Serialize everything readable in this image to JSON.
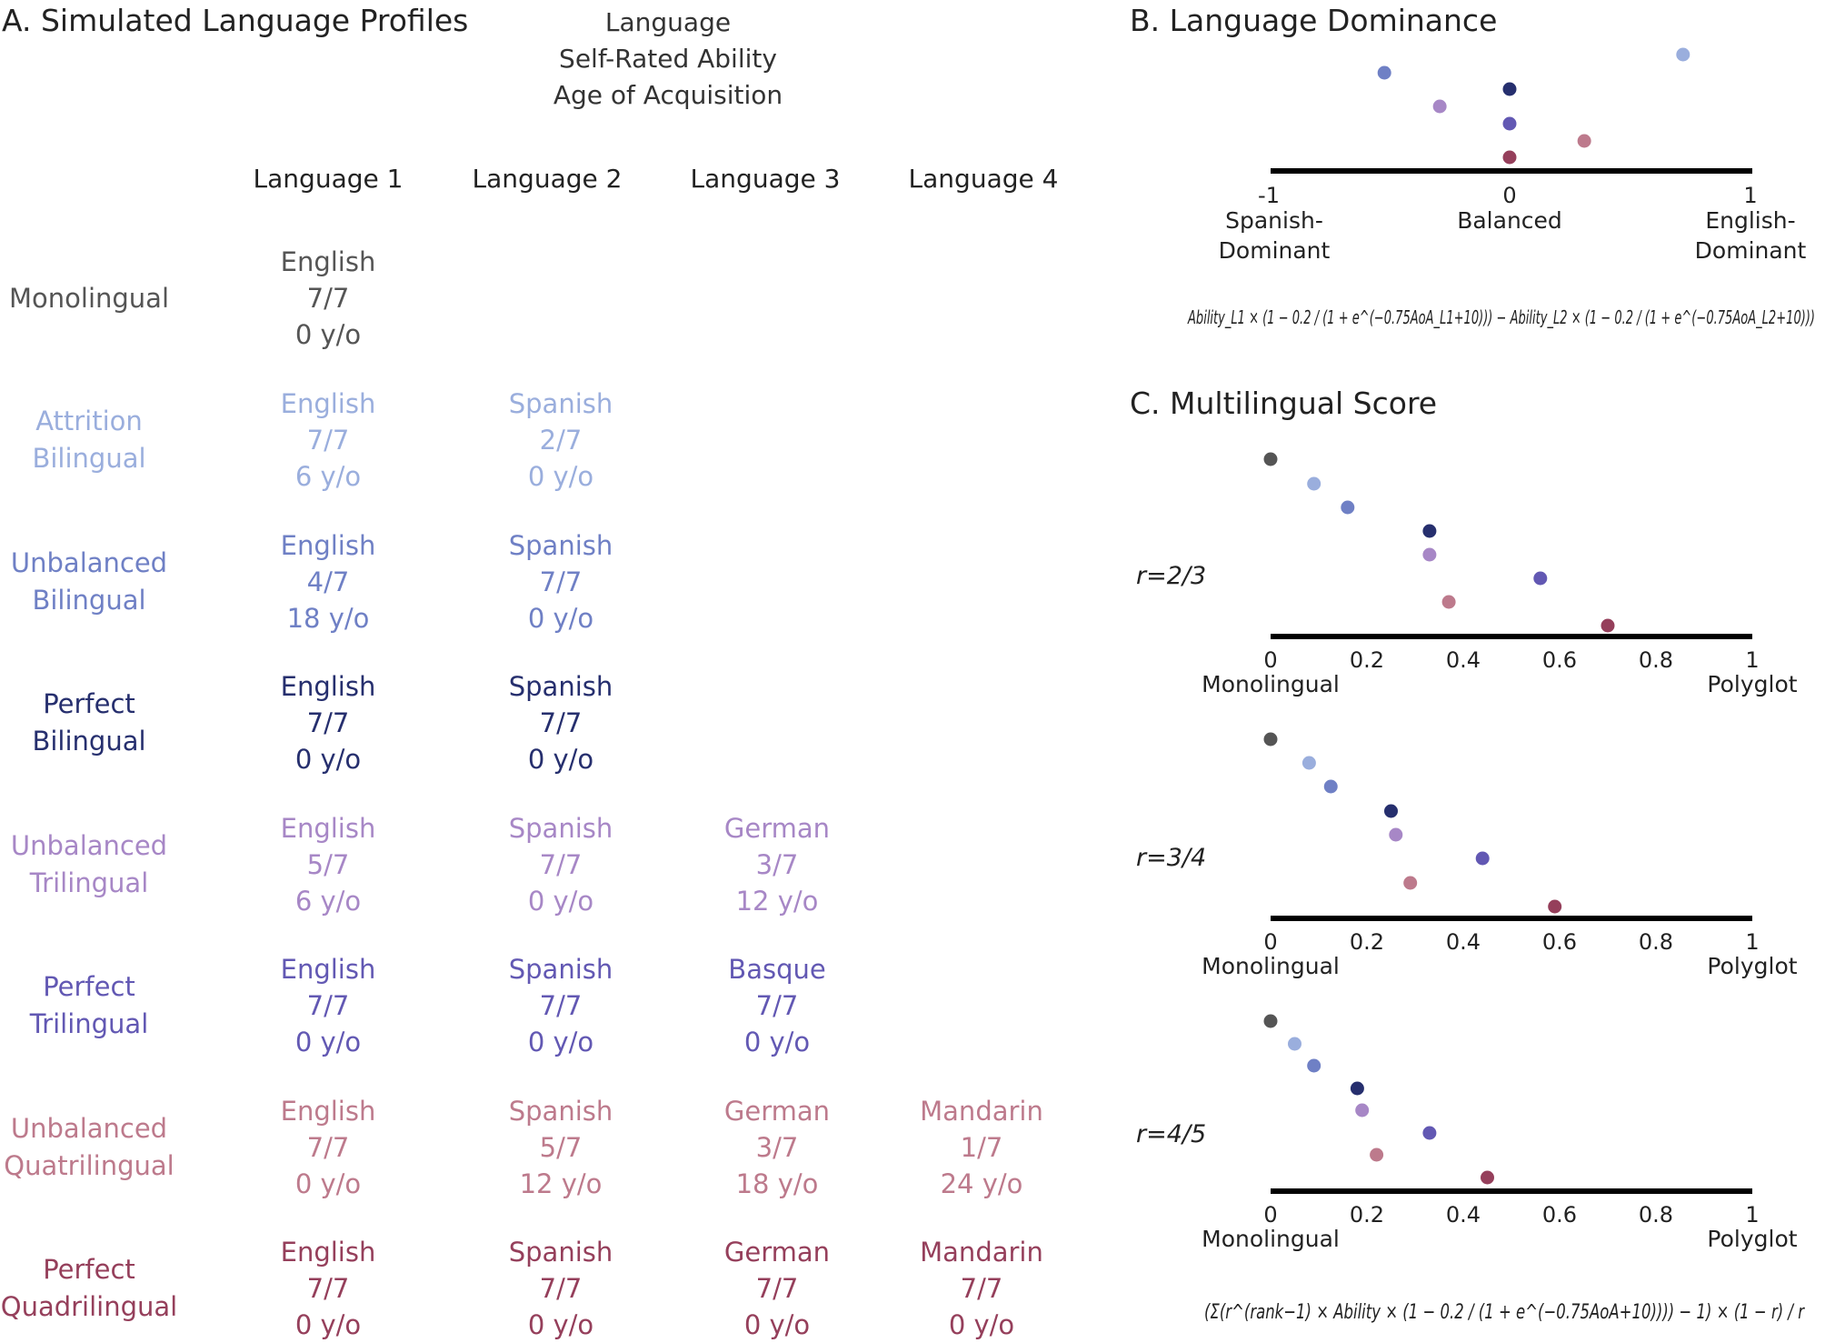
{
  "colors": {
    "Monolingual": "#555555",
    "Attrition Bilingual": "#9aaedd",
    "Unbalanced Bilingual": "#6f80c5",
    "Perfect Bilingual": "#262f6e",
    "Unbalanced Trilingual": "#a787c6",
    "Perfect Trilingual": "#6258b3",
    "Unbalanced Quatrilingual": "#bd7a8c",
    "Perfect Quadrilingual": "#953f5b"
  },
  "panel_a": {
    "title": "A.  Simulated Language Profiles",
    "key": [
      "Language",
      "Self-Rated Ability",
      "Age of Acquisition"
    ],
    "columns": [
      "Language 1",
      "Language 2",
      "Language 3",
      "Language 4"
    ],
    "profiles": [
      {
        "label": [
          "Monolingual"
        ],
        "langs": [
          [
            "English",
            "7/7",
            "0 y/o"
          ]
        ]
      },
      {
        "label": [
          "Attrition",
          "Bilingual"
        ],
        "langs": [
          [
            "English",
            "7/7",
            "6 y/o"
          ],
          [
            "Spanish",
            "2/7",
            "0 y/o"
          ]
        ]
      },
      {
        "label": [
          "Unbalanced",
          "Bilingual"
        ],
        "langs": [
          [
            "English",
            "4/7",
            "18 y/o"
          ],
          [
            "Spanish",
            "7/7",
            "0 y/o"
          ]
        ]
      },
      {
        "label": [
          "Perfect",
          "Bilingual"
        ],
        "langs": [
          [
            "English",
            "7/7",
            "0 y/o"
          ],
          [
            "Spanish",
            "7/7",
            "0 y/o"
          ]
        ]
      },
      {
        "label": [
          "Unbalanced",
          "Trilingual"
        ],
        "langs": [
          [
            "English",
            "5/7",
            "6 y/o"
          ],
          [
            "Spanish",
            "7/7",
            "0 y/o"
          ],
          [
            "German",
            "3/7",
            "12 y/o"
          ]
        ]
      },
      {
        "label": [
          "Perfect",
          "Trilingual"
        ],
        "langs": [
          [
            "English",
            "7/7",
            "0 y/o"
          ],
          [
            "Spanish",
            "7/7",
            "0 y/o"
          ],
          [
            "Basque",
            "7/7",
            "0 y/o"
          ]
        ]
      },
      {
        "label": [
          "Unbalanced",
          "Quatrilingual"
        ],
        "langs": [
          [
            "English",
            "7/7",
            "0 y/o"
          ],
          [
            "Spanish",
            "5/7",
            "12 y/o"
          ],
          [
            "German",
            "3/7",
            "18 y/o"
          ],
          [
            "Mandarin",
            "1/7",
            "24 y/o"
          ]
        ]
      },
      {
        "label": [
          "Perfect",
          "Quadrilingual"
        ],
        "langs": [
          [
            "English",
            "7/7",
            "0 y/o"
          ],
          [
            "Spanish",
            "7/7",
            "0 y/o"
          ],
          [
            "German",
            "7/7",
            "0 y/o"
          ],
          [
            "Mandarin",
            "7/7",
            "0 y/o"
          ]
        ]
      }
    ]
  },
  "chart_data": [
    {
      "type": "scatter",
      "title": "B.  Language Dominance",
      "xlim": [
        -1,
        1
      ],
      "ticks": [
        "-1",
        "0",
        "1"
      ],
      "tick_values": [
        -1,
        0,
        1
      ],
      "axis_labels": [
        {
          "value": -1,
          "lines": [
            "Spanish-",
            "Dominant"
          ]
        },
        {
          "value": 0,
          "lines": [
            "Balanced"
          ]
        },
        {
          "value": 1,
          "lines": [
            "English-",
            "Dominant"
          ]
        }
      ],
      "points": [
        {
          "profile": "Attrition Bilingual",
          "x": 0.72
        },
        {
          "profile": "Unbalanced Bilingual",
          "x": -0.52
        },
        {
          "profile": "Perfect Bilingual",
          "x": 0.0
        },
        {
          "profile": "Unbalanced Trilingual",
          "x": -0.29
        },
        {
          "profile": "Perfect Trilingual",
          "x": 0.0
        },
        {
          "profile": "Unbalanced Quatrilingual",
          "x": 0.31
        },
        {
          "profile": "Perfect Quadrilingual",
          "x": 0.0
        }
      ],
      "formula": "Ability_L1 × (1 − 0.2 / (1 + e^(−0.75AoA_L1+10))) − Ability_L2 × (1 − 0.2 / (1 + e^(−0.75AoA_L2+10)))"
    },
    {
      "type": "scatter",
      "title": "C.  Multilingual Score",
      "label": "r=2/3",
      "xlim": [
        0,
        1
      ],
      "ticks": [
        "0",
        "0.2",
        "0.4",
        "0.6",
        "0.8",
        "1"
      ],
      "tick_values": [
        0,
        0.2,
        0.4,
        0.6,
        0.8,
        1
      ],
      "end_labels": [
        "Monolingual",
        "Polyglot"
      ],
      "points": [
        {
          "profile": "Monolingual",
          "x": 0.0
        },
        {
          "profile": "Attrition Bilingual",
          "x": 0.09
        },
        {
          "profile": "Unbalanced Bilingual",
          "x": 0.16
        },
        {
          "profile": "Perfect Bilingual",
          "x": 0.33
        },
        {
          "profile": "Unbalanced Trilingual",
          "x": 0.33
        },
        {
          "profile": "Perfect Trilingual",
          "x": 0.56
        },
        {
          "profile": "Unbalanced Quatrilingual",
          "x": 0.37
        },
        {
          "profile": "Perfect Quadrilingual",
          "x": 0.7
        }
      ]
    },
    {
      "type": "scatter",
      "label": "r=3/4",
      "xlim": [
        0,
        1
      ],
      "ticks": [
        "0",
        "0.2",
        "0.4",
        "0.6",
        "0.8",
        "1"
      ],
      "tick_values": [
        0,
        0.2,
        0.4,
        0.6,
        0.8,
        1
      ],
      "end_labels": [
        "Monolingual",
        "Polyglot"
      ],
      "points": [
        {
          "profile": "Monolingual",
          "x": 0.0
        },
        {
          "profile": "Attrition Bilingual",
          "x": 0.08
        },
        {
          "profile": "Unbalanced Bilingual",
          "x": 0.125
        },
        {
          "profile": "Perfect Bilingual",
          "x": 0.25
        },
        {
          "profile": "Unbalanced Trilingual",
          "x": 0.26
        },
        {
          "profile": "Perfect Trilingual",
          "x": 0.44
        },
        {
          "profile": "Unbalanced Quatrilingual",
          "x": 0.29
        },
        {
          "profile": "Perfect Quadrilingual",
          "x": 0.59
        }
      ]
    },
    {
      "type": "scatter",
      "label": "r=4/5",
      "xlim": [
        0,
        1
      ],
      "ticks": [
        "0",
        "0.2",
        "0.4",
        "0.6",
        "0.8",
        "1"
      ],
      "tick_values": [
        0,
        0.2,
        0.4,
        0.6,
        0.8,
        1
      ],
      "end_labels": [
        "Monolingual",
        "Polyglot"
      ],
      "points": [
        {
          "profile": "Monolingual",
          "x": 0.0
        },
        {
          "profile": "Attrition Bilingual",
          "x": 0.05
        },
        {
          "profile": "Unbalanced Bilingual",
          "x": 0.09
        },
        {
          "profile": "Perfect Bilingual",
          "x": 0.18
        },
        {
          "profile": "Unbalanced Trilingual",
          "x": 0.19
        },
        {
          "profile": "Perfect Trilingual",
          "x": 0.33
        },
        {
          "profile": "Unbalanced Quatrilingual",
          "x": 0.22
        },
        {
          "profile": "Perfect Quadrilingual",
          "x": 0.45
        }
      ],
      "formula": "(Σ(r^(rank−1) × Ability × (1 − 0.2 / (1 + e^(−0.75AoA+10)))) − 1) × (1 − r) / r"
    }
  ]
}
